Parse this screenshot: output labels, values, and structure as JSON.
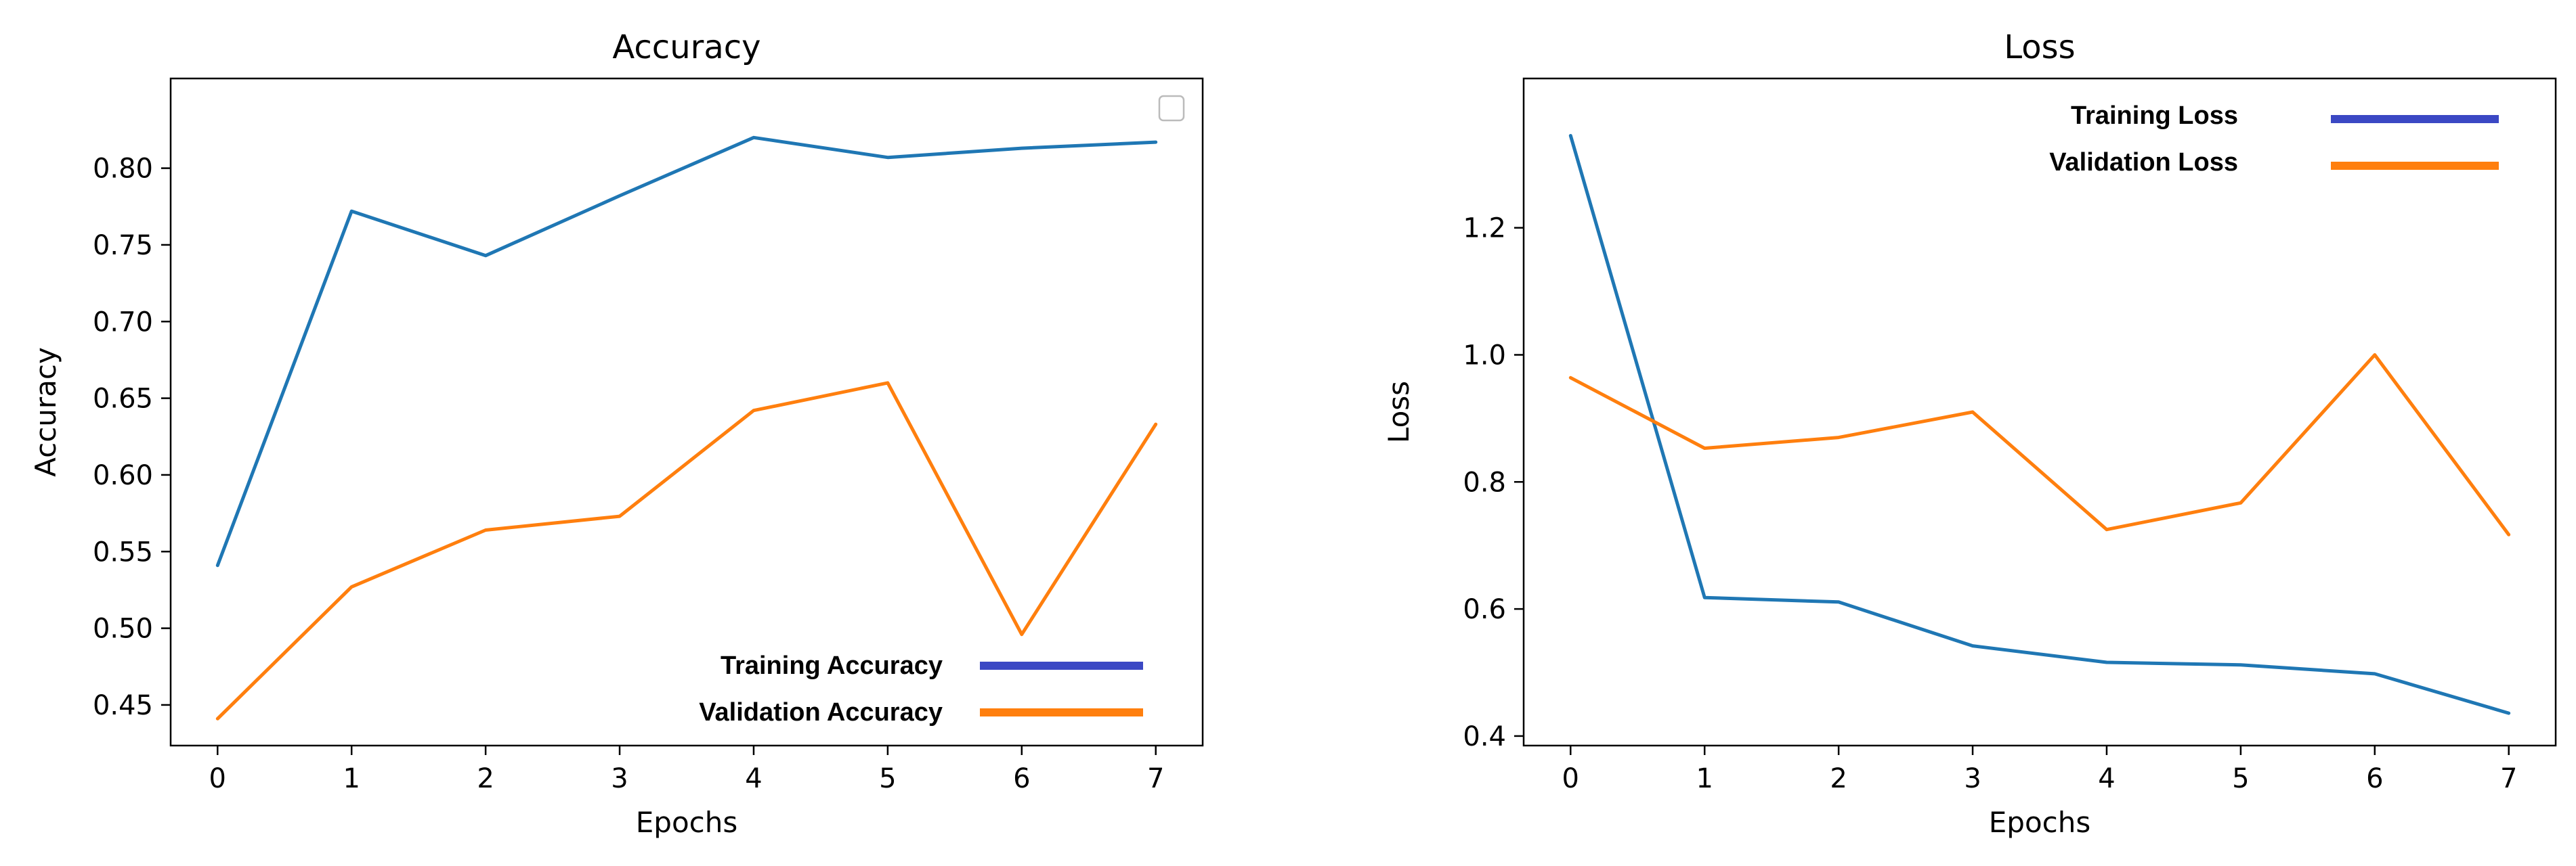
{
  "chart_data": [
    {
      "type": "line",
      "title": "Accuracy",
      "xlabel": "Epochs",
      "ylabel": "Accuracy",
      "x": [
        0,
        1,
        2,
        3,
        4,
        5,
        6,
        7
      ],
      "xticks": [
        "0",
        "1",
        "2",
        "3",
        "4",
        "5",
        "6",
        "7"
      ],
      "xlim": [
        -0.35,
        7.35
      ],
      "ylim": [
        0.4235,
        0.8585
      ],
      "yticks": [
        "0.45",
        "0.50",
        "0.55",
        "0.60",
        "0.65",
        "0.70",
        "0.75",
        "0.80"
      ],
      "legend_position": "lower-right",
      "series": [
        {
          "name": "Training Accuracy",
          "color": "#1f77b4",
          "legend_color": "#3b48c4",
          "values": [
            0.541,
            0.772,
            0.743,
            0.782,
            0.82,
            0.807,
            0.813,
            0.817
          ]
        },
        {
          "name": "Validation Accuracy",
          "color": "#ff7f0e",
          "legend_color": "#ff7f0e",
          "values": [
            0.441,
            0.527,
            0.564,
            0.573,
            0.642,
            0.66,
            0.496,
            0.633
          ]
        }
      ],
      "empty_legend_box": true
    },
    {
      "type": "line",
      "title": "Loss",
      "xlabel": "Epochs",
      "ylabel": "Loss",
      "x": [
        0,
        1,
        2,
        3,
        4,
        5,
        6,
        7
      ],
      "xticks": [
        "0",
        "1",
        "2",
        "3",
        "4",
        "5",
        "6",
        "7"
      ],
      "xlim": [
        -0.35,
        7.35
      ],
      "ylim": [
        0.385,
        1.435
      ],
      "yticks": [
        "0.4",
        "0.6",
        "0.8",
        "1.0",
        "1.2"
      ],
      "legend_position": "upper-right",
      "series": [
        {
          "name": "Training  Loss",
          "color": "#1f77b4",
          "legend_color": "#3b48c4",
          "values": [
            1.345,
            0.618,
            0.611,
            0.542,
            0.516,
            0.512,
            0.498,
            0.436
          ]
        },
        {
          "name": "Validation Loss",
          "color": "#ff7f0e",
          "legend_color": "#ff7f0e",
          "values": [
            0.964,
            0.853,
            0.87,
            0.91,
            0.725,
            0.767,
            1.0,
            0.717
          ]
        }
      ]
    }
  ]
}
